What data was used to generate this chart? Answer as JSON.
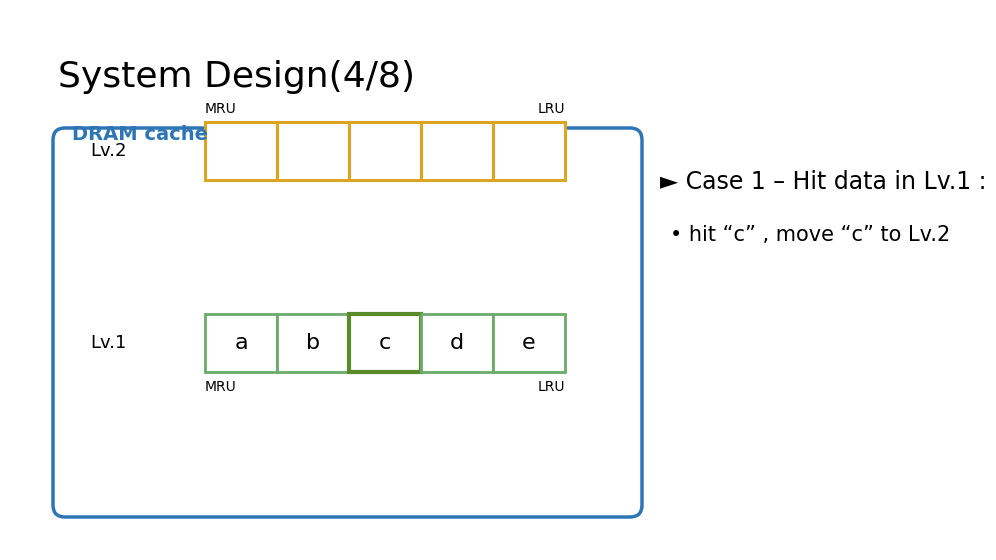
{
  "title": "System Design(4/8)",
  "subtitle": "DRAM cache",
  "subtitle_color": "#2E75B6",
  "title_fontsize": 26,
  "subtitle_fontsize": 14,
  "background": "#ffffff",
  "box_border_color": "#2E75B6",
  "lv2_color": "#DAA520",
  "lv1_color": "#6AAB6A",
  "lv1_highlight_color": "#5A8A2A",
  "lv1_labels": [
    "a",
    "b",
    "c",
    "d",
    "e"
  ],
  "lv1_highlight_index": 2,
  "lv2_cells": 5,
  "case_text": "► Case 1 – Hit data in Lv.1 :",
  "bullet_text": "• hit “c” , move “c” to Lv.2",
  "case_fontsize": 17,
  "bullet_fontsize": 15,
  "lv_label_fontsize": 13,
  "mru_lru_fontsize": 10,
  "cell_label_fontsize": 16
}
